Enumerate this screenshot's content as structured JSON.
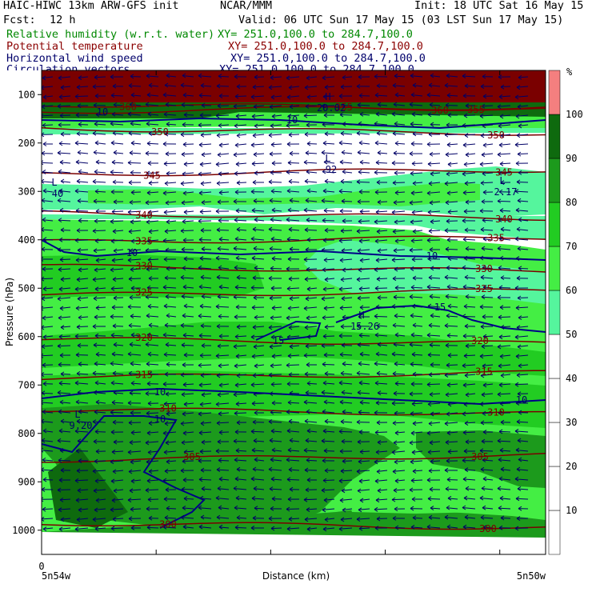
{
  "header": {
    "title": "HAIC-HIWC 13km ARW-GFS init",
    "org": "NCAR/MMM",
    "init": "Init: 18 UTC Sat 16 May 15",
    "fcst_label": "Fcst:",
    "fcst_value": "12 h",
    "valid": "Valid: 06 UTC Sun 17 May 15 (03 LST Sun 17 May 15)",
    "fields": [
      {
        "name": "Relative humidity (w.r.t. water)",
        "xy": "XY= 251.0,100.0 to 284.7,100.0",
        "color": "#008800"
      },
      {
        "name": "Potential temperature",
        "xy": "XY= 251.0,100.0 to 284.7,100.0",
        "color": "#8b0000"
      },
      {
        "name": "Horizontal wind speed",
        "xy": "XY= 251.0,100.0 to 284.7,100.0",
        "color": "#00006b"
      },
      {
        "name": "Circulation vectors",
        "xy": "XY= 251.0,100.0 to 284.7,100.0",
        "color": "#00006b"
      }
    ]
  },
  "chart_data": {
    "type": "heatmap",
    "title": "",
    "xlabel": "Distance (km)",
    "ylabel": "Pressure (hPa)",
    "x_tick_labels": [
      "0"
    ],
    "x_endpoints": {
      "left": "5n54w",
      "right": "5n50w"
    },
    "y_ticks": [
      100,
      200,
      300,
      400,
      500,
      600,
      700,
      800,
      900,
      1000
    ],
    "y_range_hpa": [
      50,
      1050
    ],
    "colorbar": {
      "unit": "%",
      "levels": [
        10,
        20,
        30,
        40,
        50,
        60,
        70,
        80,
        90,
        100
      ],
      "colors": [
        "#ffffff",
        "#ffffff",
        "#ffffff",
        "#ffffff",
        "#ffffff",
        "#55f59d",
        "#44ee44",
        "#22cc22",
        "#1c9a1c",
        "#0e6a0e",
        "#f47f7f"
      ]
    },
    "theta_contours": [
      {
        "value": 300,
        "label": "300",
        "pressure_hpa": 985
      },
      {
        "value": 305,
        "label": "305",
        "pressure_hpa": 855
      },
      {
        "value": 310,
        "label": "310",
        "pressure_hpa": 750
      },
      {
        "value": 315,
        "label": "315",
        "pressure_hpa": 685
      },
      {
        "value": 320,
        "label": "320",
        "pressure_hpa": 605
      },
      {
        "value": 325,
        "label": "325",
        "pressure_hpa": 515
      },
      {
        "value": 330,
        "label": "330",
        "pressure_hpa": 455
      },
      {
        "value": 335,
        "label": "335",
        "pressure_hpa": 405
      },
      {
        "value": 340,
        "label": "340",
        "pressure_hpa": 345
      },
      {
        "value": 345,
        "label": "345",
        "pressure_hpa": 265
      },
      {
        "value": 350,
        "label": "350",
        "pressure_hpa": 170
      },
      {
        "value": 355,
        "label": "355",
        "pressure_hpa": 135
      },
      {
        "value": 360,
        "label": "360",
        "pressure_hpa": 120
      }
    ],
    "wind_labels": [
      "10",
      "10",
      "10",
      "10",
      "10",
      "10",
      "15",
      "15",
      "10"
    ],
    "extrema": [
      {
        "type": "L",
        "value": "40"
      },
      {
        "type": "L",
        "value": "92"
      },
      {
        "type": "L",
        "value": "2.17"
      },
      {
        "type": "H",
        "value": "15.26"
      },
      {
        "type": "L",
        "value": "9.20"
      },
      {
        "type": "H",
        "value": "20.02"
      }
    ]
  }
}
